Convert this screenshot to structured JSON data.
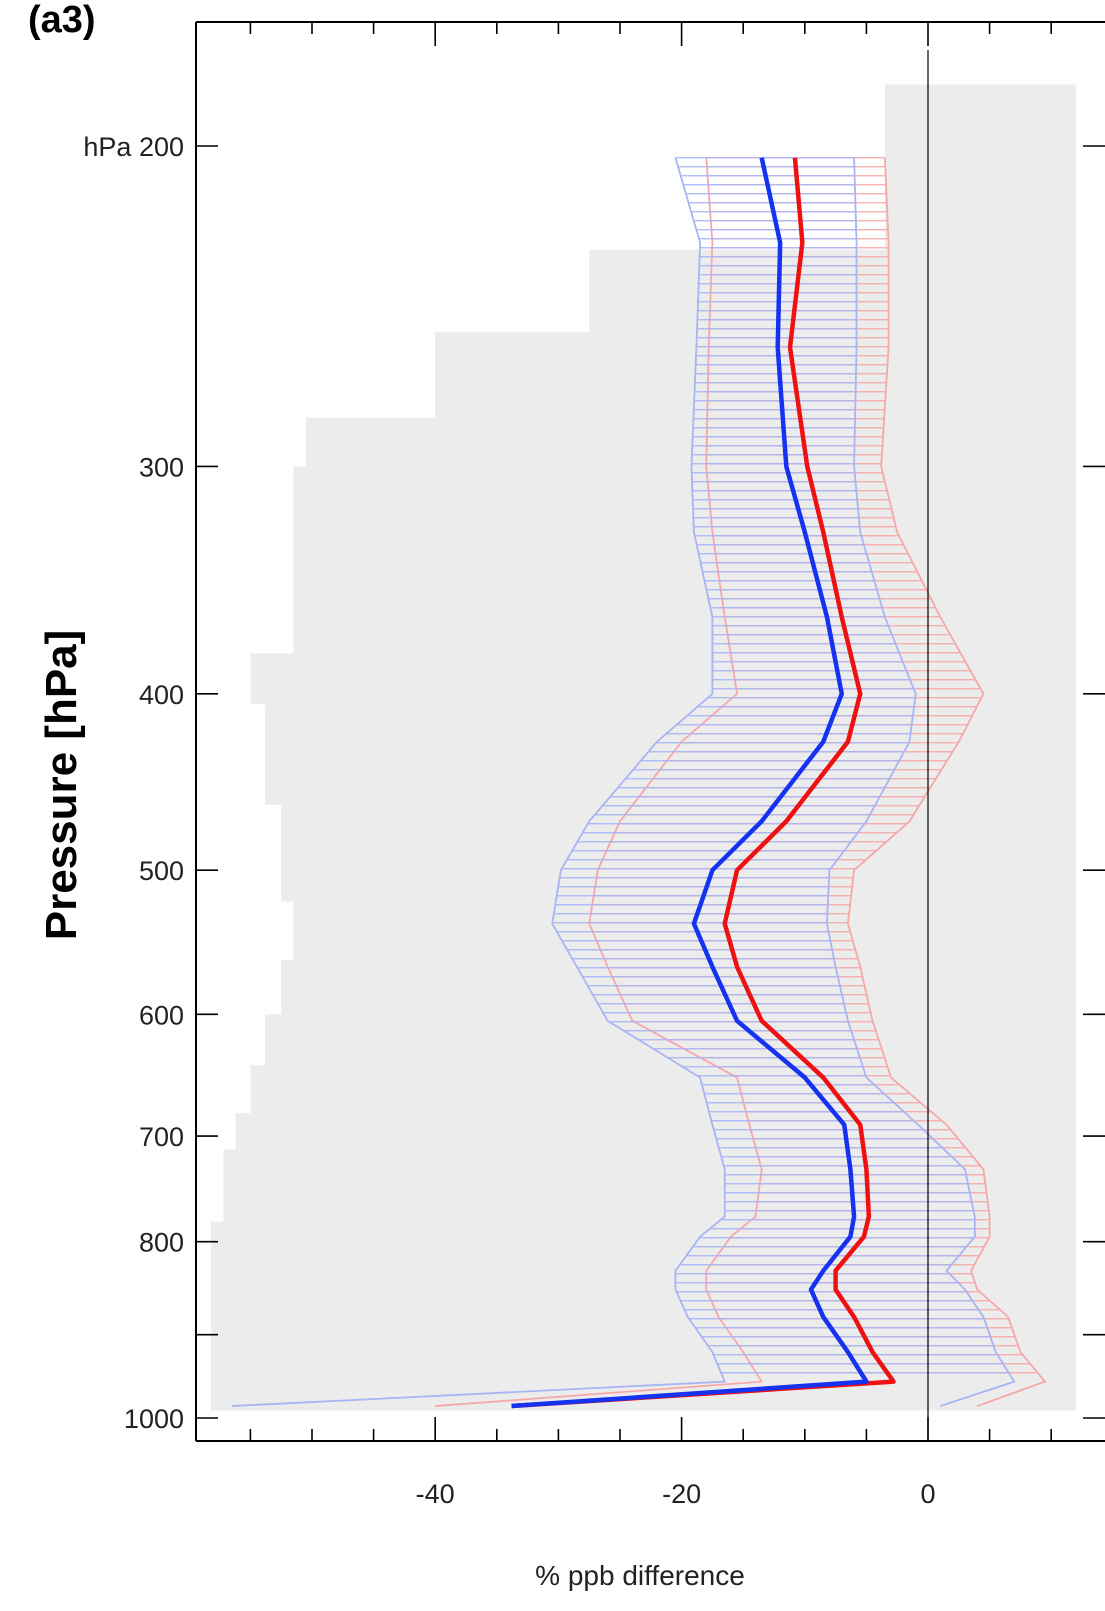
{
  "chart_data": {
    "type": "line",
    "panel_label": "(a3)",
    "title": "",
    "xlabel": "% ppb difference",
    "ylabel": "Pressure [hPa]",
    "y_scale": "log",
    "xlim": [
      -59,
      12
    ],
    "ylim": [
      1000,
      155
    ],
    "x_ticks": [
      -40,
      -20,
      0
    ],
    "x_tick_labels": [
      "-40",
      "-20",
      "0"
    ],
    "y_ticks": [
      200,
      300,
      400,
      500,
      600,
      700,
      800,
      1000
    ],
    "y_tick_labels": [
      "hPa 200",
      "300",
      "400",
      "500",
      "600",
      "700",
      "800",
      "1000"
    ],
    "zero_line": 0,
    "grid": false,
    "colors": {
      "series_blue": "#1432f0",
      "series_red": "#ee1111",
      "band_blue": "#a8b4f4",
      "band_red": "#f6a8a8",
      "shade": "#ececec",
      "axis": "#000000"
    },
    "shaded_region": {
      "description_free": true,
      "steps": [
        {
          "p_top": 185,
          "p_bottom": 228,
          "x_left": -3.5
        },
        {
          "p_top": 228,
          "p_bottom": 253,
          "x_left": -27.5
        },
        {
          "p_top": 253,
          "p_bottom": 282,
          "x_left": -40
        },
        {
          "p_top": 282,
          "p_bottom": 300,
          "x_left": -50.5
        },
        {
          "p_top": 300,
          "p_bottom": 380,
          "x_left": -51.5
        },
        {
          "p_top": 380,
          "p_bottom": 405,
          "x_left": -55
        },
        {
          "p_top": 405,
          "p_bottom": 460,
          "x_left": -53.8
        },
        {
          "p_top": 460,
          "p_bottom": 520,
          "x_left": -52.5
        },
        {
          "p_top": 520,
          "p_bottom": 560,
          "x_left": -51.5
        },
        {
          "p_top": 560,
          "p_bottom": 600,
          "x_left": -52.5
        },
        {
          "p_top": 600,
          "p_bottom": 640,
          "x_left": -53.8
        },
        {
          "p_top": 640,
          "p_bottom": 680,
          "x_left": -55
        },
        {
          "p_top": 680,
          "p_bottom": 712,
          "x_left": -56.2
        },
        {
          "p_top": 712,
          "p_bottom": 780,
          "x_left": -57.2
        },
        {
          "p_top": 780,
          "p_bottom": 990,
          "x_left": -58.2
        }
      ],
      "x_right": 12
    },
    "series": [
      {
        "color_key": "series_blue",
        "p": [
          203,
          226,
          258,
          300,
          326,
          363,
          400,
          425,
          470,
          500,
          535,
          565,
          605,
          650,
          690,
          730,
          775,
          795,
          830,
          850,
          880,
          920,
          955,
          985
        ],
        "mean": [
          -13.5,
          -12,
          -12.2,
          -11.5,
          -10,
          -8.2,
          -7,
          -8.5,
          -13.5,
          -17.5,
          -19,
          -17.5,
          -15.5,
          -10,
          -6.8,
          -6.3,
          -6,
          -6.3,
          -8.5,
          -9.5,
          -8.5,
          -6.5,
          -5,
          -33.8
        ],
        "lower": [
          -20.5,
          -18.5,
          -18.8,
          -19.2,
          -19,
          -17.5,
          -17.5,
          -22,
          -27.5,
          -29.8,
          -30.5,
          -28.5,
          -26,
          -18.5,
          -17.5,
          -16.5,
          -16.5,
          -18.5,
          -20.5,
          -20.5,
          -19.5,
          -17.5,
          -16.5,
          -56.5
        ],
        "upper": [
          -6,
          -5.8,
          -5.8,
          -6,
          -5.5,
          -3.5,
          -1,
          -1.5,
          -5,
          -8,
          -8.2,
          -7.5,
          -6.5,
          -5,
          -0.8,
          3,
          3.8,
          3.8,
          1.5,
          3,
          4.5,
          5.5,
          7,
          1
        ]
      },
      {
        "color_key": "series_red",
        "p": [
          203,
          226,
          258,
          300,
          326,
          363,
          400,
          425,
          470,
          500,
          535,
          565,
          605,
          650,
          690,
          730,
          775,
          795,
          830,
          850,
          880,
          920,
          955,
          985
        ],
        "mean": [
          -10.8,
          -10.2,
          -11.2,
          -9.8,
          -8.5,
          -7,
          -5.5,
          -6.5,
          -11.5,
          -15.5,
          -16.5,
          -15.5,
          -13.5,
          -8.5,
          -5.5,
          -5,
          -4.8,
          -5.2,
          -7.5,
          -7.5,
          -6,
          -4.5,
          -2.8,
          -33.8
        ],
        "lower": [
          -18,
          -17.5,
          -17.8,
          -18,
          -17.5,
          -16.5,
          -15.5,
          -20,
          -25,
          -26.8,
          -27.5,
          -26,
          -24,
          -15.5,
          -14.5,
          -13.5,
          -14,
          -16,
          -18,
          -18,
          -17,
          -15,
          -13.5,
          -40
        ],
        "upper": [
          -3.5,
          -3.2,
          -3.2,
          -3.8,
          -2.5,
          1,
          4.5,
          2.5,
          -1.5,
          -6,
          -6.5,
          -5.5,
          -4.5,
          -3,
          1.5,
          4.5,
          5,
          5,
          3.5,
          4,
          6.5,
          7.5,
          9.5,
          4
        ]
      }
    ]
  }
}
